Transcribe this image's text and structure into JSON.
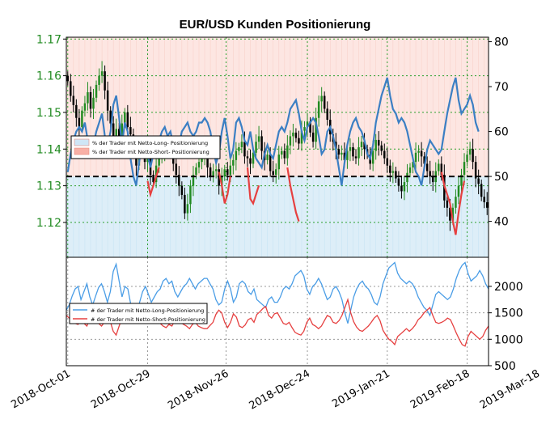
{
  "chart_data": [
    {
      "type": "candlestick-with-line",
      "title": "EUR/USD Kunden Positionierung",
      "left_axis": {
        "ticks": [
          "1.17",
          "1.16",
          "1.15",
          "1.14",
          "1.13",
          "1.12"
        ],
        "range": [
          1.1105,
          1.1705
        ],
        "color": "#228B22"
      },
      "right_axis": {
        "ticks": [
          "80",
          "70",
          "60",
          "50",
          "40"
        ],
        "range": [
          32,
          81
        ]
      },
      "reference_line": 50,
      "legend": {
        "placement": "left",
        "entries": [
          "% der Trader mit Netto-Long- Positionierung",
          "% der Trader mit Netto-Short- Positionierung"
        ]
      },
      "colors": {
        "up": "#228B22",
        "down": "#000000",
        "line_long": "#3b7fc4",
        "line_short": "#e64040",
        "band_short": "#fde6e2",
        "band_long": "#ddeef8",
        "grid": "#2ca02c"
      },
      "candles_close": [
        1.1585,
        1.1545,
        1.152,
        1.1485,
        1.146,
        1.1505,
        1.1525,
        1.1555,
        1.151,
        1.154,
        1.1575,
        1.16,
        1.1612,
        1.156,
        1.1505,
        1.147,
        1.1435,
        1.1455,
        1.142,
        1.147,
        1.15,
        1.146,
        1.144,
        1.14,
        1.1355,
        1.139,
        1.1405,
        1.1365,
        1.1385,
        1.133,
        1.131,
        1.1355,
        1.1385,
        1.1395,
        1.14,
        1.1415,
        1.139,
        1.136,
        1.133,
        1.13,
        1.1275,
        1.1225,
        1.125,
        1.13,
        1.133,
        1.135,
        1.1365,
        1.138,
        1.1395,
        1.135,
        1.1325,
        1.134,
        1.1345,
        1.13,
        1.1325,
        1.1345,
        1.133,
        1.1355,
        1.137,
        1.1395,
        1.1405,
        1.142,
        1.138,
        1.1375,
        1.136,
        1.139,
        1.142,
        1.1435,
        1.1395,
        1.137,
        1.1385,
        1.134,
        1.133,
        1.1345,
        1.1385,
        1.1395,
        1.1375,
        1.141,
        1.1435,
        1.1445,
        1.143,
        1.1415,
        1.145,
        1.146,
        1.1475,
        1.1445,
        1.142,
        1.1485,
        1.153,
        1.1545,
        1.151,
        1.148,
        1.144,
        1.142,
        1.14,
        1.1385,
        1.139,
        1.137,
        1.1395,
        1.1405,
        1.138,
        1.1375,
        1.1405,
        1.142,
        1.14,
        1.1385,
        1.136,
        1.1395,
        1.1425,
        1.141,
        1.1395,
        1.1375,
        1.1355,
        1.1335,
        1.134,
        1.132,
        1.13,
        1.1285,
        1.131,
        1.1335,
        1.135,
        1.1365,
        1.139,
        1.1395,
        1.138,
        1.136,
        1.134,
        1.1325,
        1.131,
        1.134,
        1.136,
        1.133,
        1.126,
        1.124,
        1.1205,
        1.124,
        1.127,
        1.13,
        1.133,
        1.1365,
        1.1385,
        1.14,
        1.1365,
        1.132,
        1.1305,
        1.127,
        1.1255,
        1.124
      ],
      "line_values": [
        51,
        55,
        58,
        60,
        61,
        60,
        62,
        58,
        55,
        57,
        60,
        62,
        64,
        59,
        57,
        60,
        66,
        68,
        63,
        57,
        62,
        60,
        54,
        50,
        48,
        53,
        57,
        58,
        55,
        52,
        55,
        57,
        58,
        60,
        61,
        59,
        60,
        57,
        55,
        57,
        60,
        61,
        62,
        60,
        59,
        60,
        62,
        62,
        63,
        62,
        60,
        56,
        53,
        55,
        60,
        63,
        59,
        54,
        56,
        62,
        63,
        61,
        58,
        57,
        60,
        56,
        54,
        53,
        52,
        55,
        57,
        55,
        54,
        57,
        60,
        61,
        60,
        62,
        65,
        66,
        67,
        64,
        60,
        58,
        61,
        62,
        63,
        62,
        59,
        55,
        56,
        60,
        61,
        59,
        56,
        52,
        48,
        53,
        57,
        60,
        62,
        63,
        61,
        60,
        58,
        55,
        54,
        57,
        62,
        65,
        68,
        70,
        72,
        68,
        65,
        64,
        62,
        63,
        62,
        60,
        57,
        54,
        51,
        50,
        48,
        52,
        56,
        58,
        57,
        56,
        55,
        56,
        60,
        64,
        67,
        70,
        72,
        67,
        64,
        65,
        66,
        68,
        66,
        62,
        60
      ],
      "short_segments": [
        {
          "x": [
            28.5,
            29.5,
            30.5,
            31.5,
            32.5
          ],
          "values": [
            49,
            46,
            48,
            50,
            52
          ]
        },
        {
          "x": [
            53.5,
            54.5,
            55.5,
            56.5,
            57.5
          ],
          "values": [
            51,
            48,
            44,
            46,
            50
          ]
        },
        {
          "x": [
            63.5,
            64.5,
            65.5,
            66.5,
            67.5
          ],
          "values": [
            52,
            45,
            44,
            46,
            48
          ]
        },
        {
          "x": [
            77.5,
            78.5,
            79.5,
            80.5,
            81.5
          ],
          "values": [
            52,
            48,
            45,
            42,
            40
          ]
        },
        {
          "x": [
            131.5,
            132.5,
            133.5,
            134.5,
            135.5,
            136.5,
            137.5,
            138.5,
            139.5
          ],
          "values": [
            51,
            48,
            46,
            44,
            40,
            37,
            42,
            46,
            49
          ]
        }
      ],
      "x_dates": [
        "2018-Oct-01",
        "2018-Oct-29",
        "2018-Nov-26",
        "2018-Dec-24",
        "2019-Jan-21",
        "2019-Feb-18",
        "2019-Mar-18"
      ]
    },
    {
      "type": "line",
      "right_axis": {
        "ticks": [
          "2000",
          "1500",
          "1000",
          "500"
        ],
        "range": [
          500,
          2550
        ]
      },
      "legend": {
        "placement": "left",
        "entries": [
          "# der Trader mit Netto-Long-Positionierung",
          "# der Trader mit Netto-Short-Positionierung"
        ]
      },
      "series": [
        {
          "name": "# der Trader mit Netto-Long-Positionierung",
          "color": "#4a9de6",
          "values": [
            1550,
            1650,
            1820,
            1950,
            2000,
            1750,
            1900,
            2050,
            1800,
            1650,
            1820,
            1980,
            2050,
            1900,
            1700,
            1900,
            2280,
            2420,
            2100,
            1800,
            2000,
            1950,
            1650,
            1550,
            1450,
            1700,
            1900,
            2000,
            1850,
            1700,
            1800,
            1900,
            1950,
            2100,
            2150,
            2050,
            2100,
            1900,
            1800,
            1900,
            2000,
            2050,
            2150,
            2050,
            1950,
            2050,
            2100,
            2150,
            2150,
            2050,
            1950,
            1750,
            1650,
            1700,
            1950,
            2100,
            1950,
            1700,
            1800,
            2050,
            2100,
            2050,
            1900,
            1850,
            1950,
            1750,
            1700,
            1650,
            1600,
            1750,
            1800,
            1700,
            1700,
            1800,
            1950,
            2000,
            1950,
            2050,
            2200,
            2250,
            2300,
            2200,
            1950,
            1850,
            2000,
            2050,
            2150,
            2050,
            1900,
            1750,
            1800,
            1950,
            2000,
            1900,
            1750,
            1500,
            1300,
            1550,
            1800,
            1950,
            2050,
            2100,
            2000,
            1950,
            1850,
            1700,
            1650,
            1800,
            2050,
            2200,
            2350,
            2400,
            2450,
            2250,
            2150,
            2100,
            2050,
            2100,
            2050,
            1950,
            1800,
            1700,
            1600,
            1550,
            1450,
            1650,
            1850,
            1900,
            1850,
            1800,
            1750,
            1800,
            1950,
            2150,
            2300,
            2400,
            2450,
            2250,
            2100,
            2150,
            2200,
            2300,
            2200,
            2050,
            1950
          ]
        },
        {
          "name": "# der Trader mit Netto-Short-Positionierung",
          "color": "#e64040",
          "values": [
            1450,
            1400,
            1350,
            1300,
            1280,
            1350,
            1300,
            1250,
            1380,
            1450,
            1350,
            1300,
            1250,
            1320,
            1400,
            1330,
            1150,
            1080,
            1250,
            1400,
            1300,
            1320,
            1500,
            1550,
            1650,
            1450,
            1330,
            1300,
            1380,
            1480,
            1380,
            1320,
            1300,
            1250,
            1220,
            1280,
            1250,
            1350,
            1420,
            1320,
            1280,
            1250,
            1200,
            1280,
            1320,
            1250,
            1220,
            1200,
            1200,
            1260,
            1320,
            1470,
            1550,
            1500,
            1320,
            1220,
            1320,
            1480,
            1420,
            1250,
            1220,
            1270,
            1370,
            1400,
            1320,
            1470,
            1520,
            1580,
            1620,
            1450,
            1400,
            1480,
            1500,
            1400,
            1300,
            1280,
            1320,
            1220,
            1130,
            1100,
            1080,
            1150,
            1320,
            1400,
            1280,
            1250,
            1200,
            1250,
            1350,
            1450,
            1420,
            1320,
            1300,
            1350,
            1450,
            1600,
            1750,
            1500,
            1330,
            1230,
            1170,
            1150,
            1200,
            1250,
            1320,
            1400,
            1450,
            1350,
            1170,
            1080,
            1000,
            960,
            900,
            1050,
            1100,
            1150,
            1200,
            1150,
            1200,
            1270,
            1370,
            1420,
            1500,
            1550,
            1600,
            1450,
            1320,
            1300,
            1320,
            1350,
            1400,
            1370,
            1250,
            1120,
            1000,
            900,
            870,
            1050,
            1150,
            1100,
            1050,
            1000,
            1050,
            1170,
            1250
          ]
        }
      ]
    }
  ]
}
